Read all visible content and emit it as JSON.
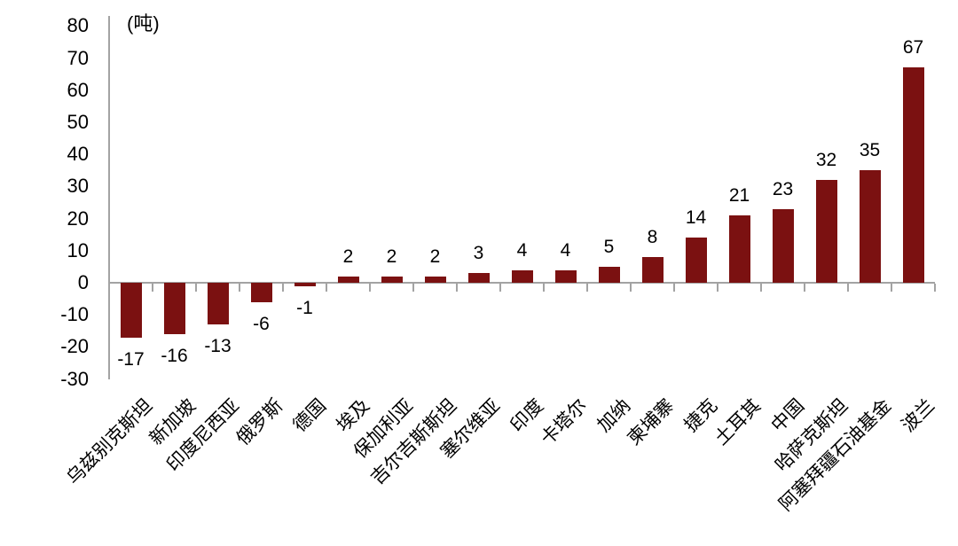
{
  "colors": {
    "bar": "#7B1111",
    "axis": "#A3A3A3",
    "text": "#000000",
    "background": "#FFFFFF"
  },
  "chart_data": {
    "type": "bar",
    "unit": "(吨)",
    "title": "",
    "xlabel": "",
    "ylabel": "",
    "categories": [
      "乌兹别克斯坦",
      "新加坡",
      "印度尼西亚",
      "俄罗斯",
      "德国",
      "埃及",
      "保加利亚",
      "吉尔吉斯斯坦",
      "塞尔维亚",
      "印度",
      "卡塔尔",
      "加纳",
      "柬埔寨",
      "捷克",
      "土耳其",
      "中国",
      "哈萨克斯坦",
      "阿塞拜疆石油基金",
      "波兰"
    ],
    "values": [
      -17,
      -16,
      -13,
      -6,
      -1,
      2,
      2,
      2,
      3,
      4,
      4,
      5,
      8,
      14,
      21,
      23,
      32,
      35,
      67
    ],
    "data_labels": [
      "-17",
      "-16",
      "-13",
      "-6",
      "-1",
      "2",
      "2",
      "2",
      "3",
      "4",
      "4",
      "5",
      "8",
      "14",
      "21",
      "23",
      "32",
      "35",
      "67"
    ],
    "ylim": [
      -30,
      80
    ],
    "yticks": [
      80,
      70,
      60,
      50,
      40,
      30,
      20,
      10,
      0,
      -10,
      -20,
      -30
    ],
    "grid": false,
    "legend": null,
    "category_label_rotation_deg": 45
  }
}
